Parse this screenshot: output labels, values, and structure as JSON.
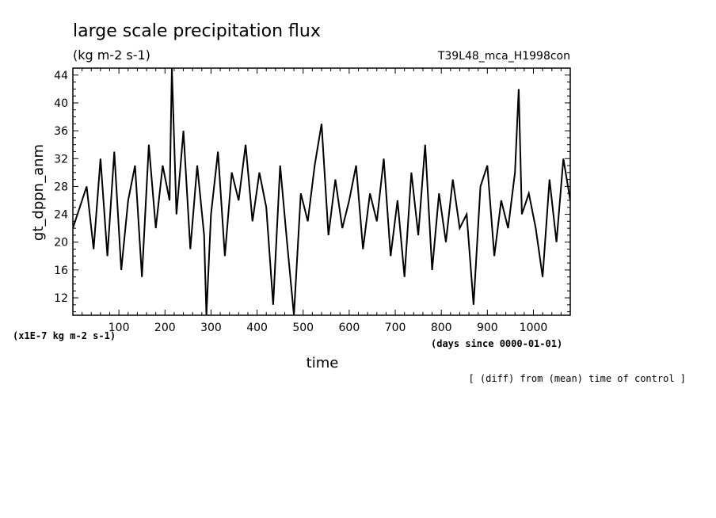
{
  "chart_data": {
    "type": "line",
    "title": "large scale precipitation flux",
    "subtitle": "(kg m-2 s-1)",
    "run_label": "T39L48_mca_H1998con",
    "xlabel": "time",
    "ylabel": "gt_dppn_anm",
    "x_unit_label": "(days since 0000-01-01)",
    "y_unit_label": "(x1E-7 kg m-2 s-1)",
    "footnote": "[ (diff) from (mean) time of control ]",
    "xlim": [
      0,
      1080
    ],
    "ylim": [
      9.5,
      45
    ],
    "x_major_ticks": [
      100,
      200,
      300,
      400,
      500,
      600,
      700,
      800,
      900,
      1000
    ],
    "y_major_ticks": [
      12,
      16,
      20,
      24,
      28,
      32,
      36,
      40,
      44
    ],
    "line_color": "#000000",
    "grid": false,
    "series": [
      {
        "name": "",
        "x": [
          0,
          15,
          30,
          45,
          60,
          75,
          90,
          105,
          120,
          135,
          150,
          165,
          180,
          195,
          210,
          215,
          225,
          240,
          255,
          270,
          285,
          290,
          300,
          315,
          330,
          345,
          360,
          375,
          390,
          405,
          420,
          435,
          450,
          465,
          480,
          495,
          510,
          525,
          540,
          555,
          570,
          585,
          600,
          615,
          630,
          645,
          660,
          675,
          690,
          705,
          720,
          735,
          750,
          765,
          780,
          795,
          810,
          825,
          840,
          855,
          870,
          885,
          900,
          915,
          930,
          945,
          960,
          968,
          975,
          990,
          1005,
          1020,
          1035,
          1050,
          1065,
          1080
        ],
        "values": [
          22,
          25,
          28,
          19,
          32,
          18,
          33,
          16,
          26,
          31,
          15,
          34,
          22,
          31,
          26,
          45,
          24,
          36,
          19,
          31,
          21,
          9.5,
          24,
          33,
          18,
          30,
          26,
          34,
          23,
          30,
          25,
          11,
          31,
          20,
          9.5,
          27,
          23,
          31,
          37,
          21,
          29,
          22,
          26,
          31,
          19,
          27,
          23,
          32,
          18,
          26,
          15,
          30,
          21,
          34,
          16,
          27,
          20,
          29,
          22,
          24,
          11,
          28,
          31,
          18,
          26,
          22,
          30,
          42,
          24,
          27,
          22,
          15,
          29,
          20,
          32,
          26
        ]
      }
    ]
  }
}
